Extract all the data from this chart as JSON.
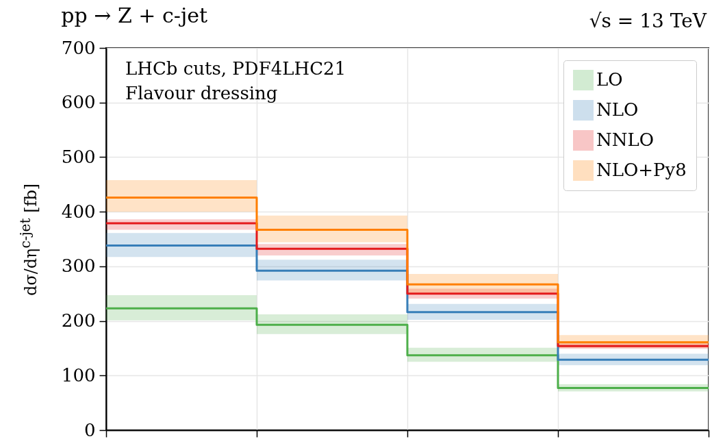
{
  "chart_data": {
    "type": "step",
    "title": "pp → Z + c-jet",
    "ylabel": "dσ/dη$^{c-jet}$ [fb]",
    "annotations": [
      "√s = 13 TeV",
      "LHCb cuts, PDF4LHC21",
      "Flavour dressing"
    ],
    "categories": [
      null,
      null,
      null,
      null,
      null
    ],
    "series": [
      {
        "name": "LO",
        "color": "#4daf4a",
        "values": [
          223,
          193,
          137,
          77,
          77
        ],
        "lower": [
          201,
          176,
          125,
          71,
          71
        ],
        "upper": [
          247,
          212,
          151,
          84,
          84
        ]
      },
      {
        "name": "NLO",
        "color": "#377eb8",
        "values": [
          338,
          292,
          216,
          129,
          129
        ],
        "lower": [
          317,
          274,
          202,
          119,
          119
        ],
        "upper": [
          361,
          312,
          231,
          140,
          140
        ]
      },
      {
        "name": "NNLO",
        "color": "#e41a1c",
        "values": [
          379,
          332,
          250,
          154,
          154
        ],
        "lower": [
          367,
          320,
          241,
          149,
          149
        ],
        "upper": [
          386,
          341,
          259,
          159,
          159
        ]
      },
      {
        "name": "NLO+Py8",
        "color": "#ff7f00",
        "values": [
          426,
          367,
          267,
          161,
          161
        ],
        "lower": [
          400,
          344,
          251,
          151,
          151
        ],
        "upper": [
          458,
          393,
          286,
          174,
          174
        ]
      }
    ],
    "ylim": [
      0,
      700
    ],
    "yticks": [
      0,
      100,
      200,
      300,
      400,
      500,
      600,
      700
    ],
    "grid": true,
    "legend": "top right",
    "tick_labels": "y"
  }
}
